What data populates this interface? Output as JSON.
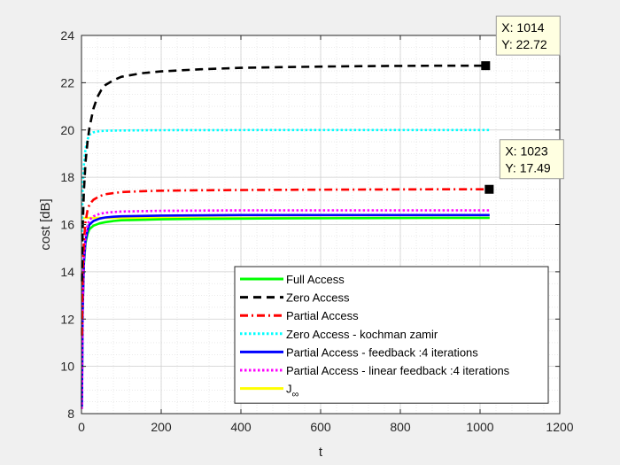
{
  "chart_data": {
    "type": "line",
    "title": "",
    "xlabel": "t",
    "ylabel": "cost [dB]",
    "xlim": [
      0,
      1200
    ],
    "ylim": [
      8,
      24
    ],
    "xticks": [
      0,
      200,
      400,
      600,
      800,
      1000,
      1200
    ],
    "yticks": [
      8,
      10,
      12,
      14,
      16,
      18,
      20,
      22,
      24
    ],
    "grid": true,
    "minor_grid": true,
    "legend_position": "bottom-right",
    "series": [
      {
        "name": "Full Access",
        "color": "#00ff00",
        "style": "solid",
        "points": [
          [
            1,
            8.6
          ],
          [
            3,
            12.4
          ],
          [
            6,
            14.3
          ],
          [
            10,
            15.2
          ],
          [
            15,
            15.6
          ],
          [
            20,
            15.8
          ],
          [
            30,
            15.95
          ],
          [
            45,
            16.05
          ],
          [
            60,
            16.1
          ],
          [
            80,
            16.15
          ],
          [
            100,
            16.18
          ],
          [
            150,
            16.2
          ],
          [
            200,
            16.22
          ],
          [
            300,
            16.24
          ],
          [
            500,
            16.26
          ],
          [
            700,
            16.27
          ],
          [
            900,
            16.28
          ],
          [
            1024,
            16.28
          ]
        ]
      },
      {
        "name": "Zero Access",
        "color": "#000000",
        "style": "dashed",
        "points": [
          [
            1,
            13.6
          ],
          [
            3,
            15.8
          ],
          [
            6,
            17.4
          ],
          [
            10,
            18.6
          ],
          [
            15,
            19.5
          ],
          [
            20,
            20.1
          ],
          [
            30,
            20.9
          ],
          [
            40,
            21.4
          ],
          [
            50,
            21.7
          ],
          [
            60,
            21.9
          ],
          [
            80,
            22.1
          ],
          [
            100,
            22.25
          ],
          [
            150,
            22.4
          ],
          [
            200,
            22.48
          ],
          [
            300,
            22.57
          ],
          [
            400,
            22.63
          ],
          [
            500,
            22.66
          ],
          [
            600,
            22.68
          ],
          [
            700,
            22.7
          ],
          [
            800,
            22.71
          ],
          [
            900,
            22.72
          ],
          [
            1014,
            22.72
          ]
        ]
      },
      {
        "name": "Partial Access",
        "color": "#ff0000",
        "style": "dashdot",
        "points": [
          [
            1,
            11.3
          ],
          [
            3,
            14.0
          ],
          [
            6,
            15.3
          ],
          [
            10,
            16.1
          ],
          [
            15,
            16.6
          ],
          [
            20,
            16.85
          ],
          [
            30,
            17.05
          ],
          [
            45,
            17.2
          ],
          [
            60,
            17.28
          ],
          [
            80,
            17.33
          ],
          [
            100,
            17.37
          ],
          [
            150,
            17.41
          ],
          [
            200,
            17.43
          ],
          [
            300,
            17.45
          ],
          [
            500,
            17.47
          ],
          [
            700,
            17.48
          ],
          [
            900,
            17.49
          ],
          [
            1023,
            17.49
          ]
        ]
      },
      {
        "name": "Zero Access - kochman zamir",
        "color": "#00ffff",
        "style": "dotted",
        "points": [
          [
            1,
            15.5
          ],
          [
            3,
            17.5
          ],
          [
            6,
            18.5
          ],
          [
            10,
            19.2
          ],
          [
            15,
            19.6
          ],
          [
            20,
            19.8
          ],
          [
            30,
            19.9
          ],
          [
            45,
            19.95
          ],
          [
            60,
            19.97
          ],
          [
            100,
            19.98
          ],
          [
            200,
            19.99
          ],
          [
            500,
            20.0
          ],
          [
            800,
            20.0
          ],
          [
            1024,
            20.0
          ]
        ]
      },
      {
        "name": "Partial Access - feedback :4 iterations",
        "color": "#0000ff",
        "style": "solid",
        "points": [
          [
            1,
            8.3
          ],
          [
            3,
            12.3
          ],
          [
            6,
            14.4
          ],
          [
            10,
            15.3
          ],
          [
            15,
            15.75
          ],
          [
            20,
            16.0
          ],
          [
            30,
            16.15
          ],
          [
            45,
            16.25
          ],
          [
            60,
            16.3
          ],
          [
            80,
            16.33
          ],
          [
            100,
            16.35
          ],
          [
            200,
            16.38
          ],
          [
            400,
            16.4
          ],
          [
            700,
            16.4
          ],
          [
            1024,
            16.4
          ]
        ]
      },
      {
        "name": "Partial Access - linear feedback :4 iterations",
        "color": "#ff00ff",
        "style": "dotted",
        "points": [
          [
            1,
            8.2
          ],
          [
            3,
            12.5
          ],
          [
            6,
            14.6
          ],
          [
            10,
            15.5
          ],
          [
            15,
            15.95
          ],
          [
            20,
            16.2
          ],
          [
            30,
            16.35
          ],
          [
            45,
            16.45
          ],
          [
            60,
            16.5
          ],
          [
            80,
            16.53
          ],
          [
            100,
            16.55
          ],
          [
            200,
            16.58
          ],
          [
            400,
            16.6
          ],
          [
            700,
            16.6
          ],
          [
            1024,
            16.6
          ]
        ]
      },
      {
        "name": "J_∞",
        "legend_main": "J",
        "legend_sub": "∞",
        "color": "#ffff00",
        "style": "solid",
        "points": [
          [
            0,
            16.28
          ],
          [
            1024,
            16.28
          ]
        ]
      }
    ],
    "annotations": [
      {
        "x": 1014,
        "y": 22.72,
        "line1": "X: 1014",
        "line2": "Y: 22.72"
      },
      {
        "x": 1023,
        "y": 17.49,
        "line1": "X: 1023",
        "line2": "Y: 17.49"
      }
    ]
  }
}
